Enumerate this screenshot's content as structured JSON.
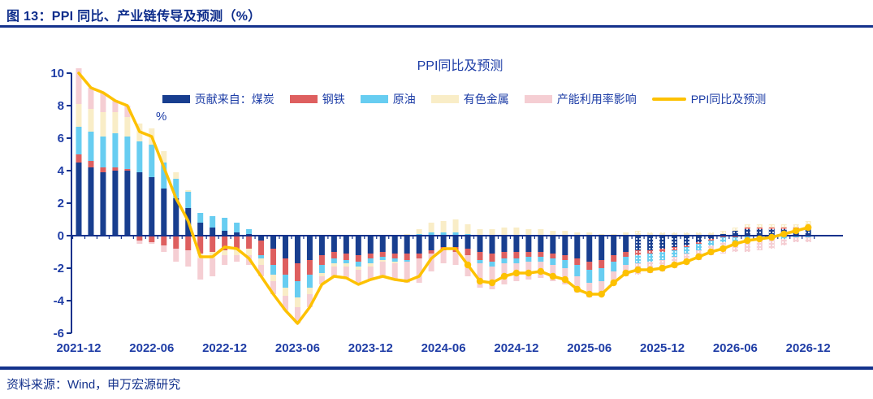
{
  "page": {
    "title": "图 13：PPI 同比、产业链传导及预测（%）",
    "source": "资料来源：Wind，申万宏源研究"
  },
  "colors": {
    "accent_navy": "#14328c",
    "label_blue": "#1f3da6",
    "coal": "#183e8f",
    "steel": "#de5f5f",
    "oil": "#67cdf1",
    "nonferrous": "#f9edc7",
    "capacity": "#f5ced3",
    "ppi_line": "#fdc101"
  },
  "chart_data": {
    "type": "bar",
    "subtype": "stacked-bars-with-line-overlay",
    "title": "PPI同比及预测",
    "unit_label": "%",
    "legend_position": "top",
    "grid": false,
    "ylim": [
      -6,
      10
    ],
    "ytick_step": 2,
    "x_tick_labels": [
      "2021-12",
      "2022-06",
      "2022-12",
      "2023-06",
      "2023-12",
      "2024-06",
      "2024-12",
      "2025-06",
      "2025-12",
      "2026-06",
      "2026-12"
    ],
    "categories": [
      "2021-12",
      "2022-01",
      "2022-02",
      "2022-03",
      "2022-04",
      "2022-05",
      "2022-06",
      "2022-07",
      "2022-08",
      "2022-09",
      "2022-10",
      "2022-11",
      "2022-12",
      "2023-01",
      "2023-02",
      "2023-03",
      "2023-04",
      "2023-05",
      "2023-06",
      "2023-07",
      "2023-08",
      "2023-09",
      "2023-10",
      "2023-11",
      "2023-12",
      "2024-01",
      "2024-02",
      "2024-03",
      "2024-04",
      "2024-05",
      "2024-06",
      "2024-07",
      "2024-08",
      "2024-09",
      "2024-10",
      "2024-11",
      "2024-12",
      "2025-01",
      "2025-02",
      "2025-03",
      "2025-04",
      "2025-05",
      "2025-06",
      "2025-07",
      "2025-08",
      "2025-09",
      "2025-10",
      "2025-11",
      "2025-12",
      "2026-01",
      "2026-02",
      "2026-03",
      "2026-04",
      "2026-05",
      "2026-06",
      "2026-07",
      "2026-08",
      "2026-09",
      "2026-10",
      "2026-11",
      "2026-12"
    ],
    "series": [
      {
        "name": "贡献来自：煤炭",
        "color": "#183e8f",
        "values": [
          4.5,
          4.2,
          3.9,
          4.0,
          4.0,
          3.9,
          3.6,
          2.9,
          2.3,
          1.7,
          0.8,
          0.5,
          0.3,
          0.2,
          0.1,
          -0.3,
          -0.8,
          -1.4,
          -1.7,
          -1.5,
          -1.2,
          -1.0,
          -1.1,
          -1.2,
          -1.1,
          -1.0,
          -1.1,
          -1.1,
          -1.1,
          -0.9,
          -0.7,
          -0.7,
          -0.8,
          -1.0,
          -1.1,
          -1.0,
          -1.0,
          -1.0,
          -1.0,
          -1.1,
          -1.2,
          -1.4,
          -1.6,
          -1.5,
          -1.2,
          -1.0,
          -0.9,
          -0.9,
          -0.8,
          -0.7,
          -0.6,
          -0.4,
          -0.2,
          0.1,
          0.3,
          0.4,
          0.4,
          0.4,
          0.4,
          0.4,
          0.4
        ]
      },
      {
        "name": "钢铁",
        "color": "#de5f5f",
        "values": [
          0.5,
          0.4,
          0.3,
          0.2,
          0.1,
          -0.3,
          -0.4,
          -0.6,
          -0.8,
          -0.9,
          -1.1,
          -1.0,
          -0.9,
          -0.8,
          -0.8,
          -0.9,
          -1.0,
          -1.0,
          -1.1,
          -0.9,
          -0.6,
          -0.4,
          -0.4,
          -0.4,
          -0.3,
          -0.3,
          -0.3,
          -0.4,
          -0.3,
          -0.2,
          -0.2,
          -0.3,
          -0.4,
          -0.5,
          -0.5,
          -0.4,
          -0.4,
          -0.3,
          -0.3,
          -0.3,
          -0.3,
          -0.4,
          -0.5,
          -0.5,
          -0.4,
          -0.3,
          -0.3,
          -0.2,
          -0.2,
          -0.2,
          -0.1,
          -0.1,
          -0.1,
          -0.1,
          -0.1,
          0.1,
          0.1,
          0.1,
          0.1,
          0.1,
          0.2
        ]
      },
      {
        "name": "原油",
        "color": "#67cdf1",
        "values": [
          1.7,
          1.8,
          1.9,
          2.1,
          2.0,
          1.9,
          2.0,
          1.6,
          1.2,
          1.0,
          0.6,
          0.7,
          0.8,
          0.6,
          0.3,
          -0.2,
          -0.6,
          -0.8,
          -1.0,
          -0.8,
          -0.5,
          -0.3,
          -0.2,
          -0.3,
          -0.3,
          -0.2,
          -0.2,
          -0.1,
          0.1,
          0.2,
          0.2,
          0.2,
          0.1,
          -0.2,
          -0.3,
          -0.3,
          -0.3,
          -0.3,
          -0.3,
          -0.4,
          -0.5,
          -0.7,
          -0.8,
          -0.8,
          -0.6,
          -0.5,
          -0.5,
          -0.5,
          -0.5,
          -0.4,
          -0.4,
          -0.4,
          -0.3,
          -0.3,
          -0.3,
          -0.3,
          -0.3,
          -0.2,
          -0.2,
          -0.1,
          -0.1
        ]
      },
      {
        "name": "有色金属",
        "color": "#f9edc7",
        "values": [
          1.4,
          1.4,
          1.5,
          1.3,
          1.2,
          1.1,
          1.0,
          0.7,
          0.4,
          0.1,
          -0.3,
          -0.4,
          -0.3,
          -0.4,
          -0.4,
          -0.4,
          -0.4,
          -0.5,
          -0.6,
          -0.4,
          -0.2,
          -0.2,
          -0.2,
          -0.2,
          -0.2,
          -0.1,
          -0.1,
          0.1,
          0.3,
          0.6,
          0.7,
          0.8,
          0.6,
          0.4,
          0.4,
          0.5,
          0.5,
          0.4,
          0.4,
          0.3,
          0.3,
          0.2,
          0.2,
          0.1,
          0.1,
          0.2,
          0.3,
          0.2,
          0.2,
          0.2,
          0.2,
          0.2,
          0.2,
          0.2,
          0.2,
          0.2,
          0.2,
          0.2,
          0.2,
          0.2,
          0.3
        ]
      },
      {
        "name": "产能利用率影响",
        "color": "#f5ced3",
        "values": [
          2.2,
          1.3,
          1.2,
          0.7,
          0.7,
          -0.2,
          -0.1,
          -0.4,
          -0.8,
          -1.0,
          -1.3,
          -1.1,
          -0.6,
          -0.4,
          -0.6,
          -0.7,
          -0.8,
          -0.9,
          -1.0,
          -0.8,
          -0.5,
          -0.6,
          -0.7,
          -0.9,
          -0.8,
          -0.9,
          -1.0,
          -1.3,
          -1.5,
          -1.1,
          -0.8,
          -0.8,
          -1.3,
          -1.5,
          -1.4,
          -1.3,
          -1.1,
          -1.1,
          -1.0,
          -1.0,
          -1.0,
          -1.0,
          -0.9,
          -0.9,
          -0.8,
          -0.7,
          -0.7,
          -0.7,
          -0.7,
          -0.7,
          -0.7,
          -0.6,
          -0.6,
          -0.7,
          -0.6,
          -0.7,
          -0.6,
          -0.6,
          -0.4,
          -0.3,
          -0.3
        ]
      }
    ],
    "line": {
      "name": "PPI同比及预测",
      "color": "#fdc101",
      "marker_from_index": 32,
      "values": [
        10.3,
        9.1,
        8.8,
        8.3,
        8.0,
        6.4,
        6.1,
        4.2,
        2.3,
        0.9,
        -1.3,
        -1.3,
        -0.7,
        -0.8,
        -1.4,
        -2.5,
        -3.6,
        -4.6,
        -5.4,
        -4.4,
        -3.0,
        -2.5,
        -2.6,
        -3.0,
        -2.7,
        -2.5,
        -2.7,
        -2.8,
        -2.5,
        -1.4,
        -0.8,
        -0.8,
        -1.8,
        -2.8,
        -2.9,
        -2.5,
        -2.3,
        -2.3,
        -2.2,
        -2.5,
        -2.7,
        -3.3,
        -3.6,
        -3.6,
        -2.9,
        -2.3,
        -2.1,
        -2.1,
        -2.0,
        -1.8,
        -1.6,
        -1.3,
        -1.0,
        -0.8,
        -0.5,
        -0.3,
        -0.2,
        -0.1,
        0.1,
        0.3,
        0.5
      ]
    },
    "forecast_from_index": 46
  }
}
